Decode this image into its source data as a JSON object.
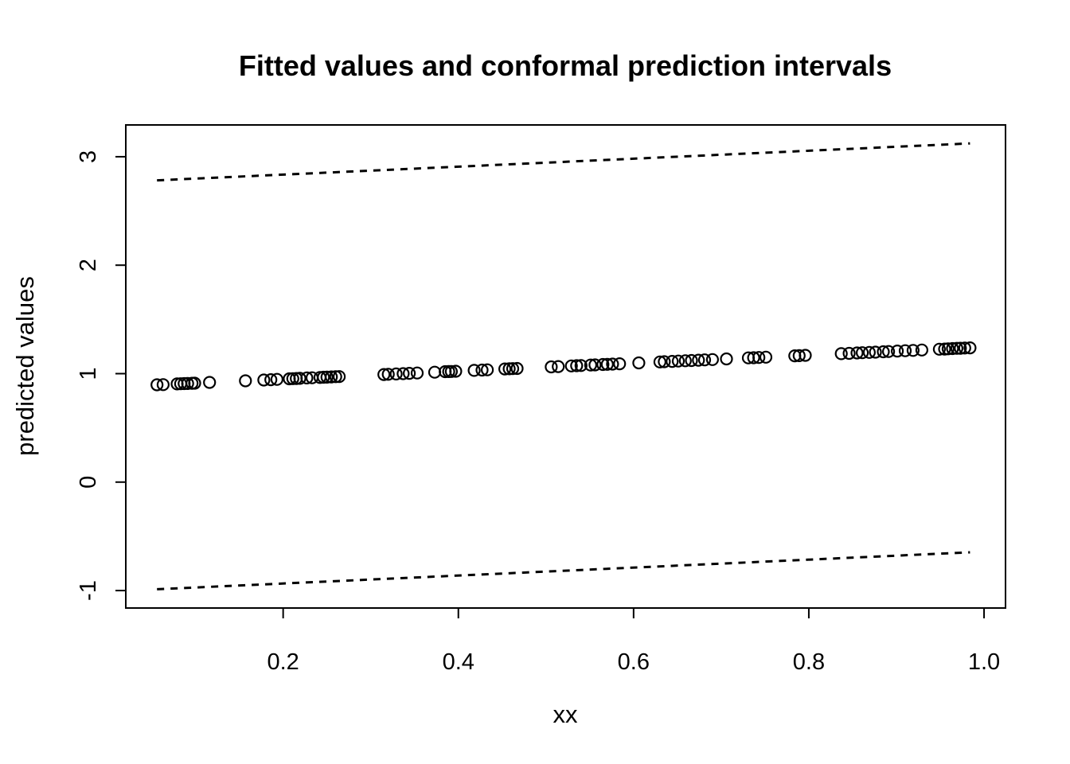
{
  "figure": {
    "background_color": "#ffffff",
    "foreground_color": "#000000"
  },
  "chart_data": {
    "type": "scatter",
    "title": "Fitted values and conformal prediction intervals",
    "xlabel": "xx",
    "ylabel": "predicted values",
    "x_ticks": [
      0.2,
      0.4,
      0.6,
      0.8,
      1.0
    ],
    "x_tick_labels": [
      "0.2",
      "0.4",
      "0.6",
      "0.8",
      "1.0"
    ],
    "y_ticks": [
      -1,
      0,
      1,
      2,
      3
    ],
    "y_tick_labels": [
      "-1",
      "0",
      "1",
      "2",
      "3"
    ],
    "xlim": [
      0.0204,
      1.0245
    ],
    "ylim": [
      -1.161,
      3.293
    ],
    "grid": false,
    "legend_position": "none",
    "marker": "open-circle",
    "fitted_line": {
      "intercept": 0.876,
      "slope": 0.368
    },
    "interval_half_width": 1.885,
    "series": [
      {
        "name": "fitted values",
        "style": "open-circles",
        "x": [
          0.056,
          0.063,
          0.079,
          0.083,
          0.087,
          0.091,
          0.096,
          0.099,
          0.116,
          0.157,
          0.178,
          0.186,
          0.193,
          0.207,
          0.211,
          0.215,
          0.219,
          0.227,
          0.233,
          0.242,
          0.246,
          0.25,
          0.255,
          0.26,
          0.264,
          0.315,
          0.32,
          0.329,
          0.337,
          0.344,
          0.353,
          0.373,
          0.385,
          0.389,
          0.392,
          0.397,
          0.418,
          0.427,
          0.433,
          0.453,
          0.458,
          0.462,
          0.467,
          0.506,
          0.514,
          0.529,
          0.535,
          0.54,
          0.551,
          0.556,
          0.565,
          0.57,
          0.576,
          0.584,
          0.606,
          0.63,
          0.635,
          0.644,
          0.651,
          0.659,
          0.666,
          0.674,
          0.681,
          0.69,
          0.706,
          0.731,
          0.737,
          0.743,
          0.751,
          0.784,
          0.789,
          0.796,
          0.837,
          0.846,
          0.855,
          0.861,
          0.869,
          0.876,
          0.885,
          0.891,
          0.901,
          0.91,
          0.919,
          0.929,
          0.949,
          0.955,
          0.959,
          0.964,
          0.969,
          0.973,
          0.978,
          0.984
        ],
        "y": [
          0.897,
          0.899,
          0.905,
          0.907,
          0.908,
          0.909,
          0.911,
          0.912,
          0.919,
          0.934,
          0.941,
          0.944,
          0.947,
          0.952,
          0.954,
          0.955,
          0.957,
          0.96,
          0.962,
          0.965,
          0.967,
          0.968,
          0.97,
          0.972,
          0.973,
          0.992,
          0.994,
          0.997,
          1.0,
          1.003,
          1.006,
          1.013,
          1.018,
          1.019,
          1.02,
          1.022,
          1.03,
          1.033,
          1.035,
          1.043,
          1.045,
          1.046,
          1.048,
          1.062,
          1.065,
          1.071,
          1.073,
          1.075,
          1.079,
          1.081,
          1.084,
          1.086,
          1.088,
          1.091,
          1.099,
          1.108,
          1.11,
          1.113,
          1.116,
          1.119,
          1.121,
          1.124,
          1.127,
          1.13,
          1.136,
          1.145,
          1.147,
          1.149,
          1.152,
          1.164,
          1.166,
          1.169,
          1.184,
          1.187,
          1.191,
          1.193,
          1.196,
          1.198,
          1.202,
          1.204,
          1.208,
          1.211,
          1.214,
          1.218,
          1.225,
          1.227,
          1.229,
          1.231,
          1.233,
          1.234,
          1.236,
          1.238
        ]
      },
      {
        "name": "upper conformal bound",
        "style": "dashed-line",
        "x": [
          0.056,
          0.984
        ],
        "y": [
          2.782,
          3.123
        ]
      },
      {
        "name": "lower conformal bound",
        "style": "dashed-line",
        "x": [
          0.056,
          0.984
        ],
        "y": [
          -0.988,
          -0.647
        ]
      }
    ]
  }
}
